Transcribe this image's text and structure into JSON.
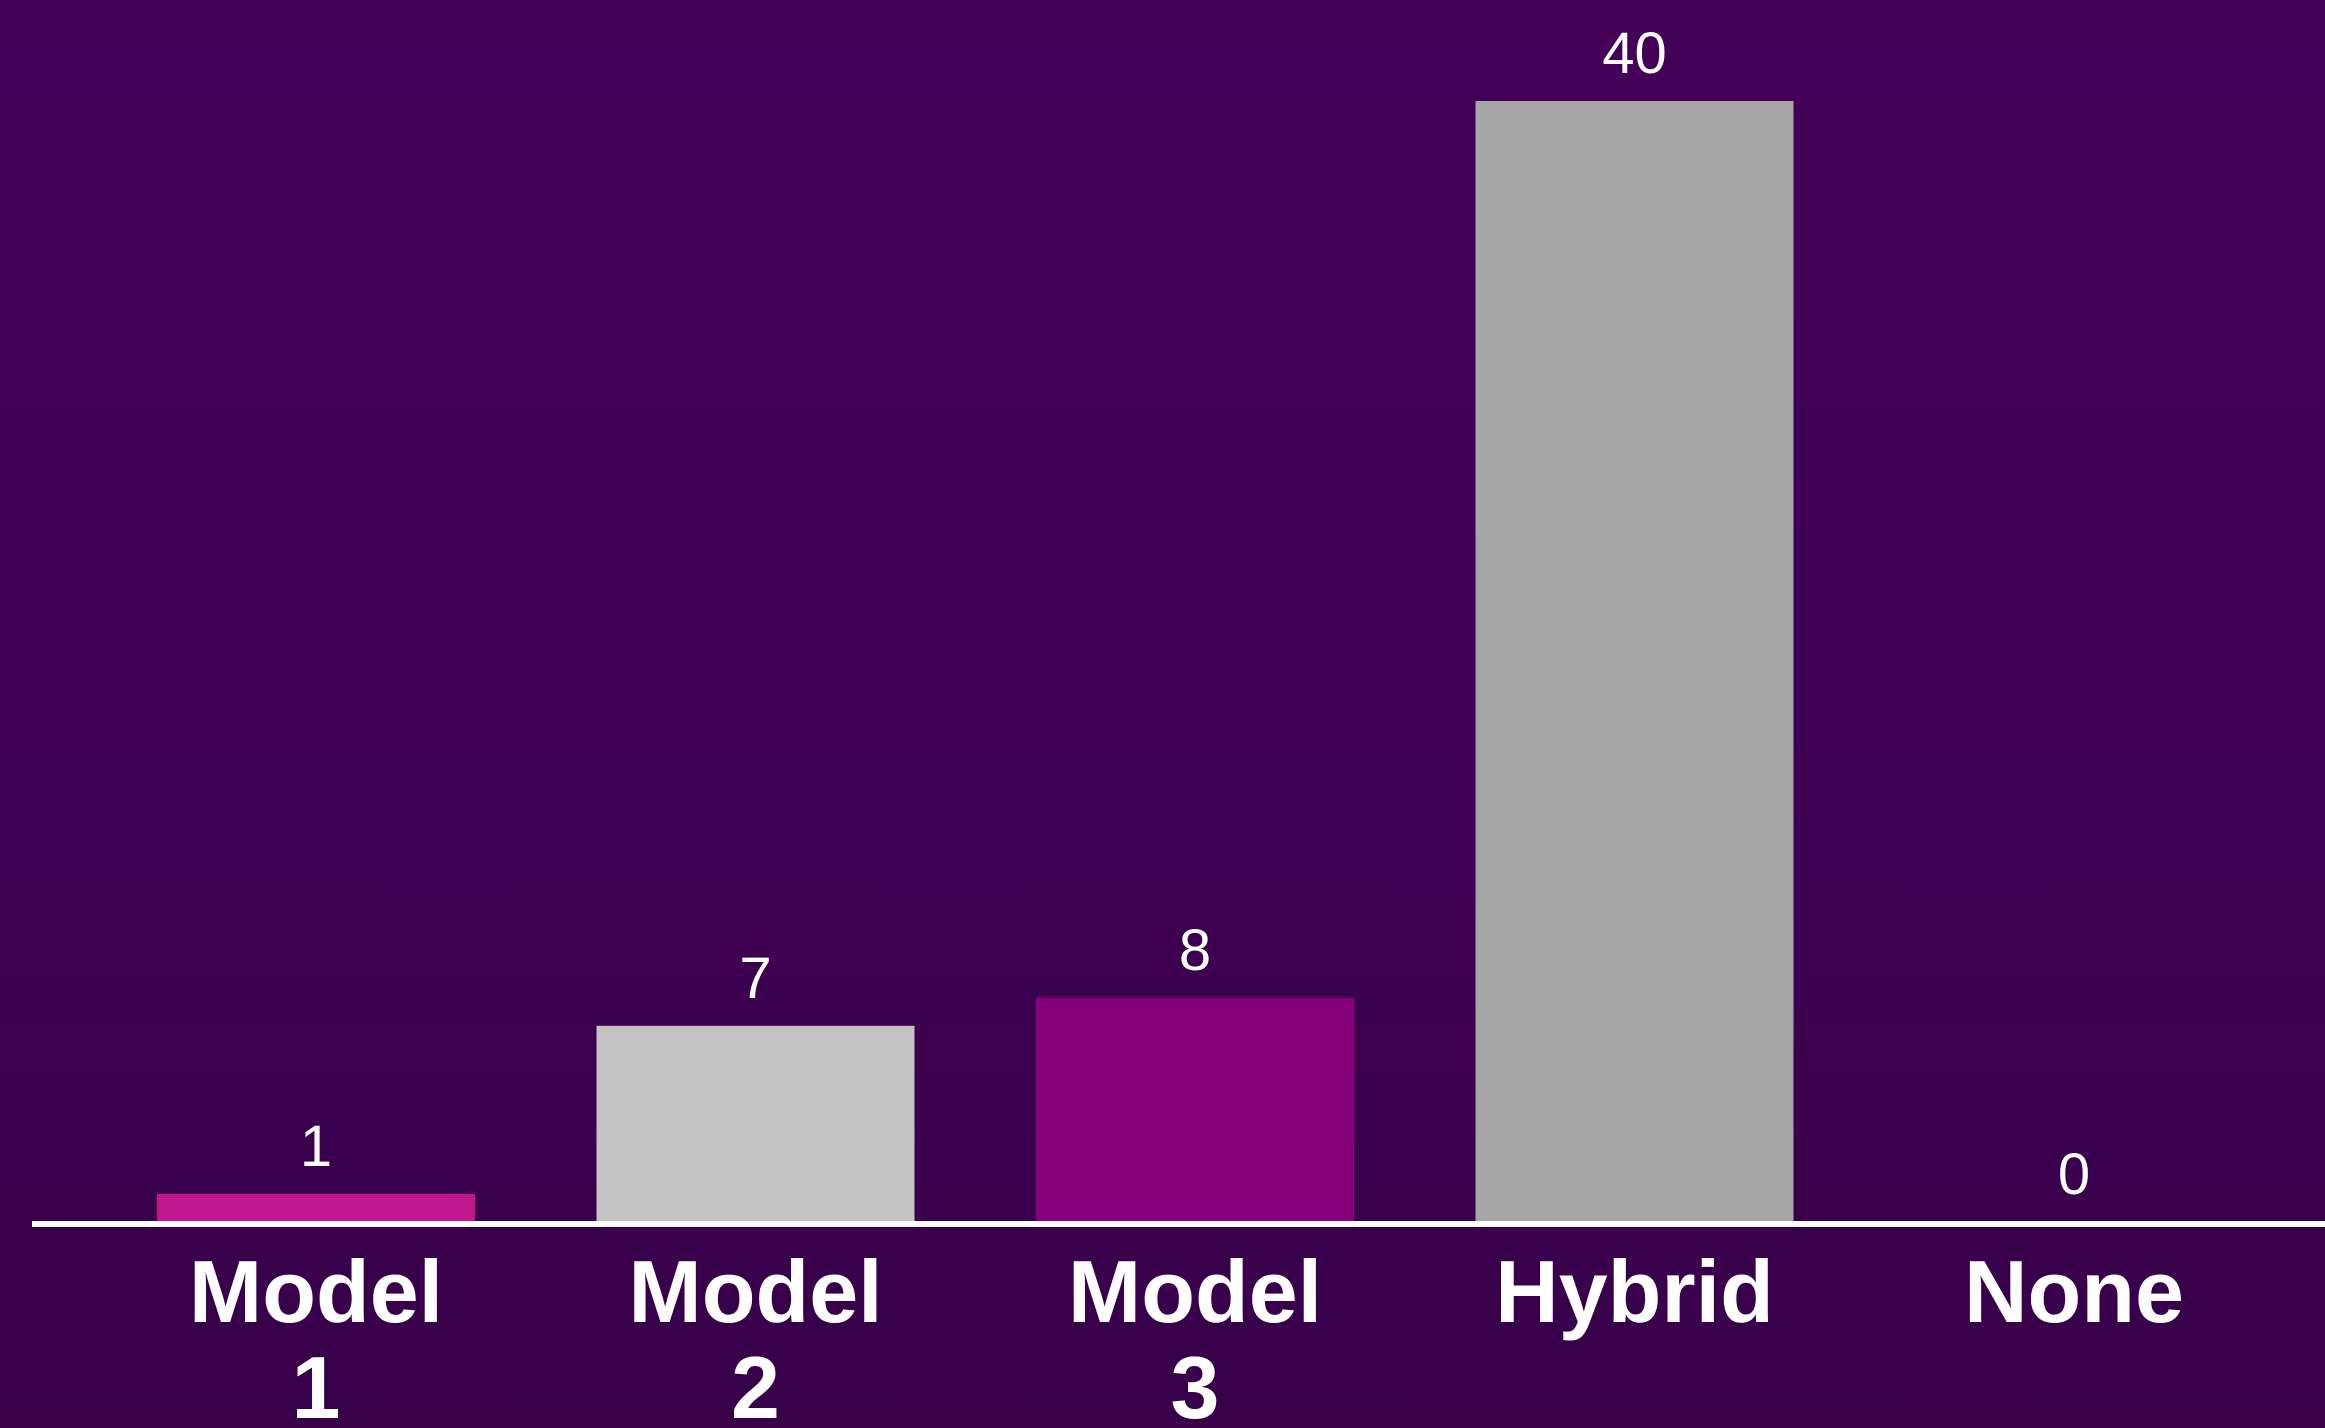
{
  "chart_data": {
    "type": "bar",
    "categories": [
      [
        "Model",
        "1"
      ],
      [
        "Model",
        "2"
      ],
      [
        "Model",
        "3"
      ],
      [
        "Hybrid"
      ],
      [
        "None"
      ]
    ],
    "values": [
      1,
      7,
      8,
      40,
      0
    ],
    "value_labels": [
      "1",
      "7",
      "8",
      "40",
      "0"
    ],
    "bar_colors": [
      "#c0178f",
      "#c4c4c4",
      "#85007a",
      "#a6a6a6",
      "#a6a6a6"
    ],
    "background_color": "#410056",
    "axis_color": "#ffffff",
    "label_color": "#ffffff",
    "title": "",
    "xlabel": "",
    "ylabel": "",
    "ylim": [
      0,
      40
    ],
    "grid": false,
    "legend": "none"
  }
}
